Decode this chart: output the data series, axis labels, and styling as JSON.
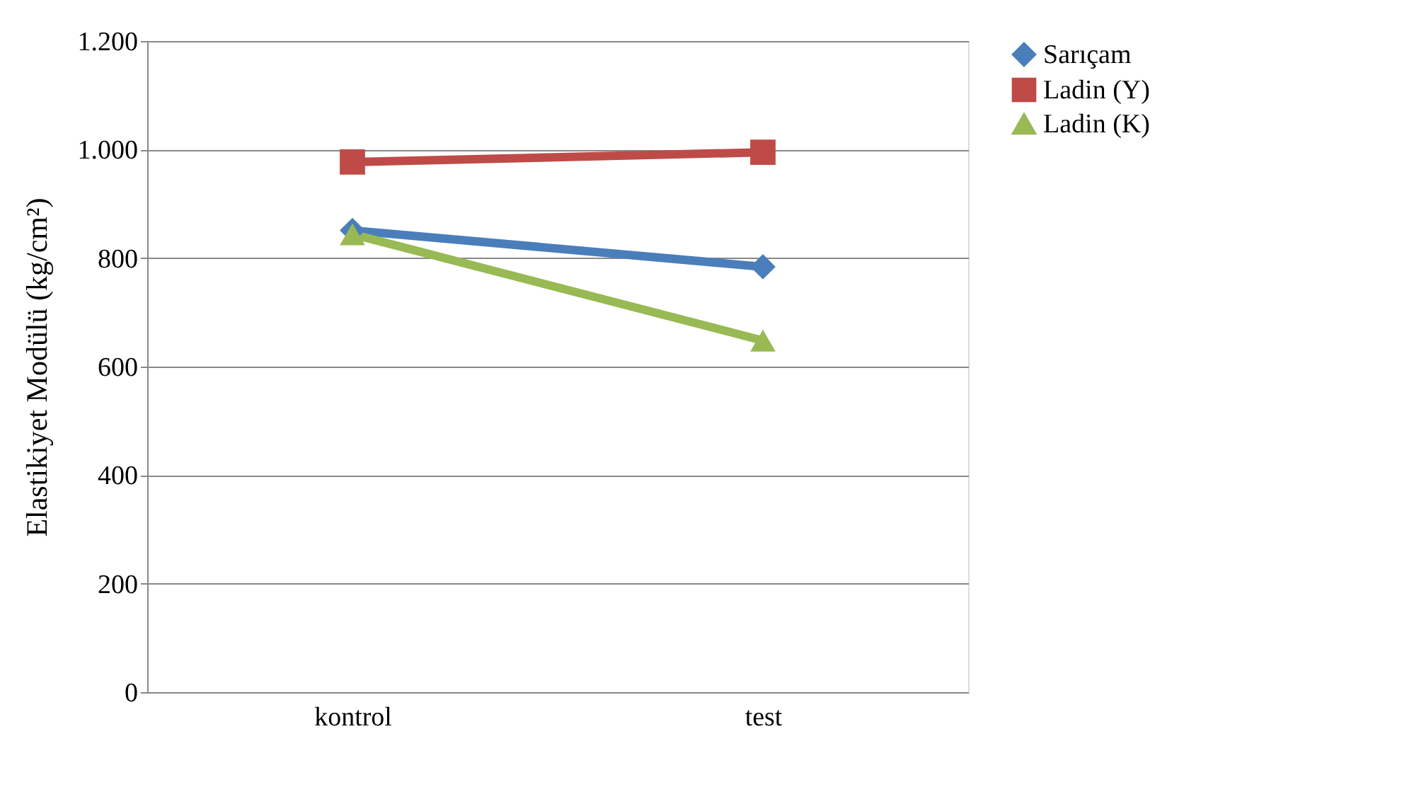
{
  "chart_data": {
    "type": "line",
    "ylabel": "Elastikiyet Modülü (kg/cm²)",
    "categories": [
      "kontrol",
      "test"
    ],
    "series": [
      {
        "name": "Sarıçam",
        "color": "#4a7ebb",
        "marker": "diamond",
        "values": [
          851,
          784
        ]
      },
      {
        "name": "Ladin (Y)",
        "color": "#be4b48",
        "marker": "square",
        "values": [
          977,
          995
        ]
      },
      {
        "name": "Ladin (K)",
        "color": "#98b954",
        "marker": "triangle",
        "values": [
          844,
          648
        ]
      }
    ],
    "ylim": [
      0,
      1200
    ],
    "yticks": [
      0,
      200,
      400,
      600,
      800,
      {
        "value": 1000,
        "label": "1.000"
      },
      {
        "value": 1200,
        "label": "1.200"
      }
    ],
    "grid": "y",
    "legend": "right",
    "line_style": "solid"
  }
}
